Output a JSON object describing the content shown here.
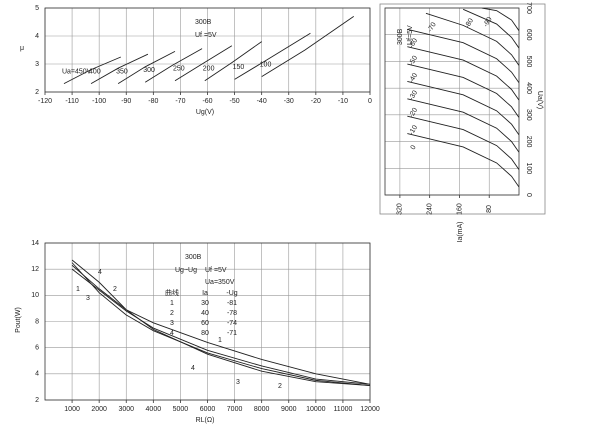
{
  "chart_data": [
    {
      "type": "line",
      "x_label": "Ug(V)",
      "y_label": "μ",
      "annotations": [
        "300B",
        "Uf =5V"
      ],
      "xlim": [
        -120,
        0
      ],
      "xticks": [
        -120,
        -110,
        -100,
        -90,
        -80,
        -70,
        -60,
        -50,
        -40,
        -30,
        -20,
        -10,
        0
      ],
      "ylim": [
        2,
        5
      ],
      "yticks": [
        2,
        3,
        4,
        5
      ],
      "grid": true,
      "series": [
        {
          "name": "Ua=450V",
          "color": "#222",
          "x": [
            -113,
            -103,
            -92
          ],
          "values": [
            2.3,
            2.8,
            3.25
          ]
        },
        {
          "name": "400",
          "color": "#222",
          "x": [
            -103,
            -93,
            -82
          ],
          "values": [
            2.3,
            2.85,
            3.35
          ]
        },
        {
          "name": "350",
          "color": "#222",
          "x": [
            -93,
            -83,
            -72
          ],
          "values": [
            2.3,
            2.9,
            3.45
          ]
        },
        {
          "name": "300",
          "color": "#222",
          "x": [
            -83,
            -73,
            -62
          ],
          "values": [
            2.35,
            2.95,
            3.55
          ]
        },
        {
          "name": "250",
          "color": "#222",
          "x": [
            -72,
            -62,
            -51
          ],
          "values": [
            2.4,
            3.0,
            3.65
          ]
        },
        {
          "name": "200",
          "color": "#222",
          "x": [
            -61,
            -51,
            -40
          ],
          "values": [
            2.4,
            3.05,
            3.8
          ]
        },
        {
          "name": "150",
          "color": "#222",
          "x": [
            -50,
            -38,
            -22
          ],
          "values": [
            2.45,
            3.15,
            4.1
          ]
        },
        {
          "name": "100",
          "color": "#222",
          "x": [
            -40,
            -24,
            -6
          ],
          "values": [
            2.55,
            3.5,
            4.7
          ]
        }
      ]
    },
    {
      "type": "line",
      "x_label": "Ia(mA)",
      "y_label": "Ua(V)",
      "annotations": [
        "300B",
        "Uf=5V"
      ],
      "xlim": [
        360,
        0
      ],
      "xticks": [
        320,
        240,
        160,
        80
      ],
      "ylim": [
        0,
        700
      ],
      "yticks": [
        0,
        100,
        200,
        300,
        400,
        500,
        600,
        700
      ],
      "grid": true,
      "series": [
        {
          "name": "0",
          "color": "#222",
          "x": [
            0,
            20,
            60,
            150,
            300
          ],
          "values": [
            30,
            70,
            120,
            180,
            230
          ]
        },
        {
          "name": "-10",
          "color": "#222",
          "x": [
            0,
            20,
            60,
            150,
            300
          ],
          "values": [
            95,
            135,
            185,
            245,
            295
          ]
        },
        {
          "name": "-20",
          "color": "#222",
          "x": [
            0,
            20,
            60,
            150,
            300
          ],
          "values": [
            160,
            200,
            250,
            310,
            360
          ]
        },
        {
          "name": "-30",
          "color": "#222",
          "x": [
            0,
            20,
            60,
            150,
            300
          ],
          "values": [
            225,
            265,
            315,
            375,
            425
          ]
        },
        {
          "name": "-40",
          "color": "#222",
          "x": [
            0,
            20,
            60,
            150,
            300
          ],
          "values": [
            290,
            330,
            380,
            440,
            490
          ]
        },
        {
          "name": "-50",
          "color": "#222",
          "x": [
            0,
            20,
            60,
            150,
            300
          ],
          "values": [
            355,
            395,
            445,
            505,
            555
          ]
        },
        {
          "name": "-60",
          "color": "#222",
          "x": [
            0,
            20,
            60,
            150,
            300
          ],
          "values": [
            420,
            460,
            510,
            570,
            620
          ]
        },
        {
          "name": "-70",
          "color": "#222",
          "x": [
            0,
            20,
            60,
            150,
            250
          ],
          "values": [
            485,
            525,
            575,
            635,
            680
          ]
        },
        {
          "name": "-80",
          "color": "#222",
          "x": [
            0,
            20,
            60,
            150
          ],
          "values": [
            550,
            590,
            640,
            695
          ]
        },
        {
          "name": "-90",
          "color": "#222",
          "x": [
            0,
            20,
            60,
            100
          ],
          "values": [
            615,
            655,
            690,
            700
          ]
        }
      ]
    },
    {
      "type": "line",
      "x_label": "RL(Ω)",
      "y_label": "Pout(W)",
      "annotations": [
        "300B",
        "Ug~Ug",
        "Uf =5V",
        "Ua=350V"
      ],
      "table": {
        "columns": [
          "曲线",
          "Ia",
          "-Ug"
        ],
        "rows": [
          [
            "1",
            "30",
            "-81"
          ],
          [
            "2",
            "40",
            "-78"
          ],
          [
            "3",
            "60",
            "-74"
          ],
          [
            "4",
            "80",
            "-71"
          ]
        ]
      },
      "xlim": [
        0,
        12000
      ],
      "xticks": [
        1000,
        2000,
        3000,
        4000,
        5000,
        6000,
        7000,
        8000,
        9000,
        10000,
        11000,
        12000
      ],
      "ylim": [
        2,
        14
      ],
      "yticks": [
        2,
        4,
        6,
        8,
        10,
        12,
        14
      ],
      "grid": true,
      "x": [
        1000,
        2000,
        3000,
        4000,
        6000,
        8000,
        10000,
        12000
      ],
      "series": [
        {
          "name": "1",
          "color": "#222",
          "values": [
            12.3,
            10.5,
            8.9,
            7.9,
            6.4,
            5.1,
            4.0,
            3.2
          ]
        },
        {
          "name": "2",
          "color": "#222",
          "values": [
            12.0,
            10.4,
            8.8,
            7.5,
            5.8,
            4.6,
            3.6,
            3.2
          ]
        },
        {
          "name": "3",
          "color": "#222",
          "values": [
            12.5,
            10.2,
            8.5,
            7.3,
            5.6,
            4.4,
            3.5,
            3.1
          ]
        },
        {
          "name": "4",
          "color": "#222",
          "values": [
            12.7,
            11.0,
            8.9,
            7.4,
            5.5,
            4.2,
            3.4,
            3.1
          ]
        }
      ]
    }
  ]
}
